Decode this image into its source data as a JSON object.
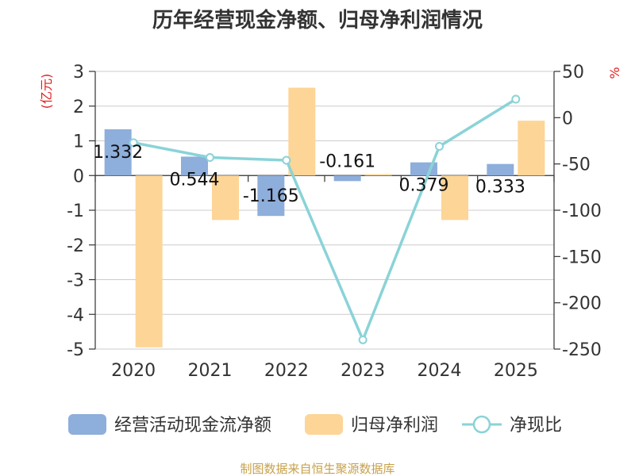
{
  "chart_data": {
    "type": "bar",
    "title": "历年经营现金净额、归母净利润情况",
    "categories": [
      "2020",
      "2021",
      "2022",
      "2023",
      "2024",
      "2025"
    ],
    "left_unit": "(亿元)",
    "right_unit": "%",
    "left_ylim": [
      -5,
      3
    ],
    "left_ticks": [
      3,
      2,
      1,
      0,
      -1,
      -2,
      -3,
      -4,
      -5
    ],
    "right_ylim": [
      -250,
      50
    ],
    "right_ticks": [
      50,
      0,
      -50,
      -100,
      -150,
      -200,
      -250
    ],
    "series": [
      {
        "name": "经营活动现金流净额",
        "type": "bar",
        "axis": "left",
        "color": "#8eaedb",
        "values": [
          1.332,
          0.544,
          -1.165,
          -0.161,
          0.379,
          0.333
        ],
        "labels": [
          "1.332",
          "0.544",
          "-1.165",
          "-0.161",
          "0.379",
          "0.333"
        ]
      },
      {
        "name": "归母净利润",
        "type": "bar",
        "axis": "left",
        "color": "#fdd596",
        "values": [
          -4.95,
          -1.28,
          2.53,
          0.04,
          -1.28,
          1.58
        ]
      },
      {
        "name": "净现比",
        "type": "line",
        "axis": "right",
        "color": "#8ad3d8",
        "values": [
          -27,
          -43,
          -46,
          -240,
          -31,
          20
        ]
      }
    ],
    "grid": true,
    "legend_position": "bottom"
  },
  "source": "制图数据来自恒生聚源数据库"
}
